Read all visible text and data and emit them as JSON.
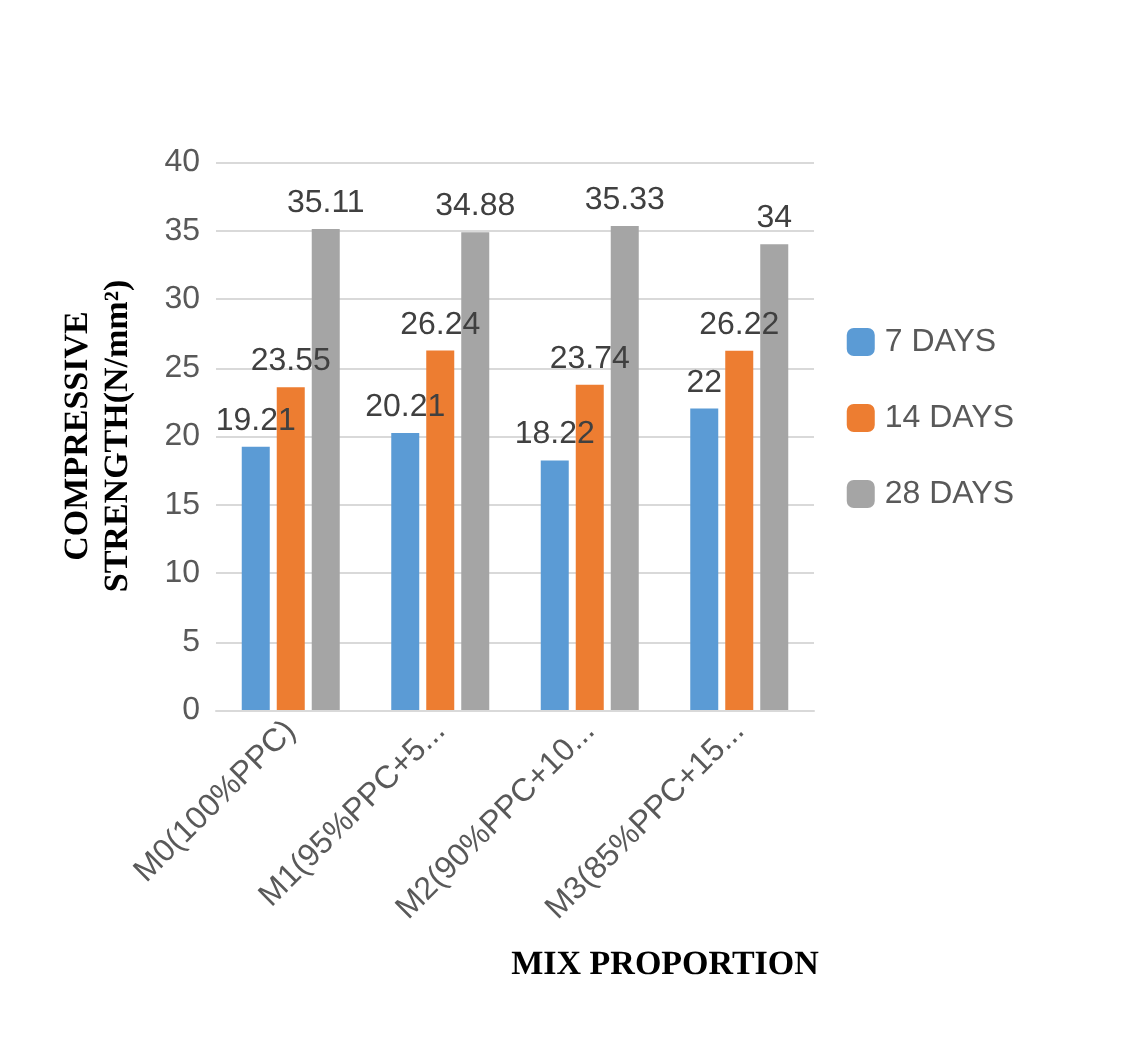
{
  "chart_data": {
    "type": "bar",
    "xlabel": "MIX PROPORTION",
    "ylabel": "COMPRESSIVE STRENGTH(N/mm²)",
    "categories": [
      "M0(100%PPC)",
      "M1(95%PPC+5...",
      "M2(90%PPC+10...",
      "M3(85%PPC+15..."
    ],
    "series": [
      {
        "name": "7 DAYS",
        "color": "#5b9bd5",
        "values": [
          19.21,
          20.21,
          18.22,
          22
        ]
      },
      {
        "name": "14 DAYS",
        "color": "#ed7d31",
        "values": [
          23.55,
          26.24,
          23.74,
          26.22
        ]
      },
      {
        "name": "28 DAYS",
        "color": "#a5a5a5",
        "values": [
          35.11,
          34.88,
          35.33,
          34
        ]
      }
    ],
    "ylim": [
      0,
      40
    ],
    "yticks": [
      0,
      5,
      10,
      15,
      20,
      25,
      30,
      35,
      40
    ],
    "grid": "y",
    "legend": "right",
    "data_labels": true
  }
}
